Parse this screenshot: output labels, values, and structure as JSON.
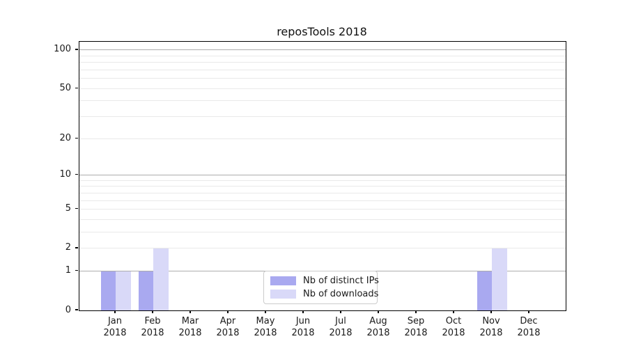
{
  "chart_data": {
    "type": "bar",
    "title": "reposTools 2018",
    "x_labels": [
      [
        "Jan",
        "2018"
      ],
      [
        "Feb",
        "2018"
      ],
      [
        "Mar",
        "2018"
      ],
      [
        "Apr",
        "2018"
      ],
      [
        "May",
        "2018"
      ],
      [
        "Jun",
        "2018"
      ],
      [
        "Jul",
        "2018"
      ],
      [
        "Aug",
        "2018"
      ],
      [
        "Sep",
        "2018"
      ],
      [
        "Oct",
        "2018"
      ],
      [
        "Nov",
        "2018"
      ],
      [
        "Dec",
        "2018"
      ]
    ],
    "series": [
      {
        "name": "Nb of distinct IPs",
        "color": "#a9a9f0",
        "values": [
          1,
          1,
          0,
          0,
          0,
          0,
          0,
          0,
          0,
          0,
          1,
          0
        ]
      },
      {
        "name": "Nb of downloads",
        "color": "#d9d9f8",
        "values": [
          1,
          2,
          0,
          0,
          0,
          0,
          0,
          0,
          0,
          0,
          2,
          0
        ]
      }
    ],
    "yscale": "log1p",
    "ylim": [
      0,
      116
    ],
    "y_tick_values": [
      0,
      1,
      2,
      5,
      10,
      20,
      50,
      100
    ],
    "y_tick_labels": [
      "0",
      "1",
      "2",
      "5",
      "10",
      "20",
      "50",
      "100"
    ],
    "grid_major_values": [
      1,
      10,
      100
    ],
    "grid_minor_values": [
      2,
      3,
      4,
      5,
      6,
      7,
      8,
      9,
      20,
      30,
      40,
      50,
      60,
      70,
      80,
      90
    ],
    "legend_position": "lower center",
    "colors": {
      "grid_major": "#adadad",
      "grid_minor": "#e9e9e9",
      "axis": "#000000",
      "text": "#1a1a1a",
      "background": "#ffffff"
    }
  }
}
